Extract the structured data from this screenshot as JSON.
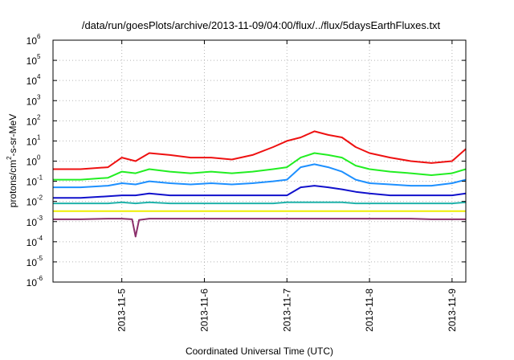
{
  "chart_data": {
    "type": "line",
    "title": "/data/run/goesPlots/archive/2013-11-09/04:00/flux/../flux/5daysEarthFluxes.txt",
    "xlabel": "Coordinated Universal Time (UTC)",
    "ylabel": "protons/cm²-s-sr-MeV",
    "ylabel_parts": {
      "pre": "protons/cm",
      "sup": "2",
      "post": "-s-sr-MeV"
    },
    "y_scale": "log",
    "ylim": [
      1e-06,
      1000000.0
    ],
    "y_tick_labels": [
      {
        "value": 1e-06,
        "base": "10",
        "exp": "-6"
      },
      {
        "value": 1e-05,
        "base": "10",
        "exp": "-5"
      },
      {
        "value": 0.0001,
        "base": "10",
        "exp": "-4"
      },
      {
        "value": 0.001,
        "base": "10",
        "exp": "-3"
      },
      {
        "value": 0.01,
        "base": "10",
        "exp": "-2"
      },
      {
        "value": 0.1,
        "base": "10",
        "exp": "-1"
      },
      {
        "value": 1,
        "base": "10",
        "exp": "0"
      },
      {
        "value": 10,
        "base": "10",
        "exp": "1"
      },
      {
        "value": 100,
        "base": "10",
        "exp": "2"
      },
      {
        "value": 1000,
        "base": "10",
        "exp": "3"
      },
      {
        "value": 10000,
        "base": "10",
        "exp": "4"
      },
      {
        "value": 100000,
        "base": "10",
        "exp": "5"
      },
      {
        "value": 1000000,
        "base": "10",
        "exp": "6"
      }
    ],
    "xlim": [
      "2013-11-04 04:00",
      "2013-11-09 04:00"
    ],
    "x_tick_labels": [
      "2013-11-5",
      "2013-11-6",
      "2013-11-7",
      "2013-11-8",
      "2013-11-9"
    ],
    "x_tick_dates": [
      "2013-11-05",
      "2013-11-06",
      "2013-11-07",
      "2013-11-08",
      "2013-11-09"
    ],
    "grid": true,
    "series": [
      {
        "color": "#ee1111",
        "x": [
          "2013-11-04 04:00",
          "2013-11-04 12:00",
          "2013-11-04 20:00",
          "2013-11-05 00:00",
          "2013-11-05 04:00",
          "2013-11-05 08:00",
          "2013-11-05 14:00",
          "2013-11-05 20:00",
          "2013-11-06 02:00",
          "2013-11-06 08:00",
          "2013-11-06 14:00",
          "2013-11-06 20:00",
          "2013-11-07 00:00",
          "2013-11-07 04:00",
          "2013-11-07 08:00",
          "2013-11-07 12:00",
          "2013-11-07 16:00",
          "2013-11-07 20:00",
          "2013-11-08 00:00",
          "2013-11-08 06:00",
          "2013-11-08 12:00",
          "2013-11-08 18:00",
          "2013-11-09 00:00",
          "2013-11-09 04:00"
        ],
        "y": [
          0.4,
          0.4,
          0.5,
          1.5,
          1.0,
          2.5,
          2.0,
          1.5,
          1.5,
          1.2,
          2.0,
          5,
          10,
          15,
          30,
          20,
          15,
          5,
          2.5,
          1.5,
          1.0,
          0.8,
          1.0,
          4
        ]
      },
      {
        "color": "#22ee22",
        "x": [
          "2013-11-04 04:00",
          "2013-11-04 12:00",
          "2013-11-04 20:00",
          "2013-11-05 00:00",
          "2013-11-05 04:00",
          "2013-11-05 08:00",
          "2013-11-05 14:00",
          "2013-11-05 20:00",
          "2013-11-06 02:00",
          "2013-11-06 08:00",
          "2013-11-06 14:00",
          "2013-11-06 20:00",
          "2013-11-07 00:00",
          "2013-11-07 04:00",
          "2013-11-07 08:00",
          "2013-11-07 12:00",
          "2013-11-07 16:00",
          "2013-11-07 20:00",
          "2013-11-08 00:00",
          "2013-11-08 06:00",
          "2013-11-08 12:00",
          "2013-11-08 18:00",
          "2013-11-09 00:00",
          "2013-11-09 04:00"
        ],
        "y": [
          0.12,
          0.12,
          0.15,
          0.3,
          0.25,
          0.4,
          0.3,
          0.25,
          0.3,
          0.25,
          0.3,
          0.4,
          0.5,
          1.5,
          2.5,
          2.0,
          1.5,
          0.6,
          0.4,
          0.3,
          0.25,
          0.2,
          0.25,
          0.4
        ]
      },
      {
        "color": "#1e90ff",
        "x": [
          "2013-11-04 04:00",
          "2013-11-04 12:00",
          "2013-11-04 20:00",
          "2013-11-05 00:00",
          "2013-11-05 04:00",
          "2013-11-05 08:00",
          "2013-11-05 14:00",
          "2013-11-05 20:00",
          "2013-11-06 02:00",
          "2013-11-06 08:00",
          "2013-11-06 14:00",
          "2013-11-06 20:00",
          "2013-11-07 00:00",
          "2013-11-07 04:00",
          "2013-11-07 08:00",
          "2013-11-07 12:00",
          "2013-11-07 16:00",
          "2013-11-07 20:00",
          "2013-11-08 00:00",
          "2013-11-08 06:00",
          "2013-11-08 12:00",
          "2013-11-08 18:00",
          "2013-11-09 00:00",
          "2013-11-09 04:00"
        ],
        "y": [
          0.05,
          0.05,
          0.06,
          0.08,
          0.07,
          0.1,
          0.08,
          0.07,
          0.08,
          0.07,
          0.08,
          0.1,
          0.12,
          0.5,
          0.7,
          0.5,
          0.3,
          0.12,
          0.08,
          0.07,
          0.06,
          0.06,
          0.08,
          0.12
        ]
      },
      {
        "color": "#1111cc",
        "x": [
          "2013-11-04 04:00",
          "2013-11-04 12:00",
          "2013-11-04 20:00",
          "2013-11-05 00:00",
          "2013-11-05 04:00",
          "2013-11-05 08:00",
          "2013-11-05 14:00",
          "2013-11-05 20:00",
          "2013-11-06 02:00",
          "2013-11-06 08:00",
          "2013-11-06 14:00",
          "2013-11-06 20:00",
          "2013-11-07 00:00",
          "2013-11-07 04:00",
          "2013-11-07 08:00",
          "2013-11-07 12:00",
          "2013-11-07 16:00",
          "2013-11-07 20:00",
          "2013-11-08 00:00",
          "2013-11-08 06:00",
          "2013-11-08 12:00",
          "2013-11-08 18:00",
          "2013-11-09 00:00",
          "2013-11-09 04:00"
        ],
        "y": [
          0.015,
          0.015,
          0.018,
          0.02,
          0.02,
          0.025,
          0.02,
          0.02,
          0.02,
          0.02,
          0.02,
          0.02,
          0.02,
          0.05,
          0.06,
          0.05,
          0.04,
          0.03,
          0.025,
          0.02,
          0.02,
          0.02,
          0.02,
          0.025
        ]
      },
      {
        "color": "#20b2aa",
        "x": [
          "2013-11-04 04:00",
          "2013-11-04 12:00",
          "2013-11-04 20:00",
          "2013-11-05 00:00",
          "2013-11-05 04:00",
          "2013-11-05 08:00",
          "2013-11-05 14:00",
          "2013-11-05 20:00",
          "2013-11-06 02:00",
          "2013-11-06 08:00",
          "2013-11-06 14:00",
          "2013-11-06 20:00",
          "2013-11-07 00:00",
          "2013-11-07 04:00",
          "2013-11-07 08:00",
          "2013-11-07 12:00",
          "2013-11-07 16:00",
          "2013-11-07 20:00",
          "2013-11-08 00:00",
          "2013-11-08 06:00",
          "2013-11-08 12:00",
          "2013-11-08 18:00",
          "2013-11-09 00:00",
          "2013-11-09 04:00"
        ],
        "y": [
          0.008,
          0.008,
          0.008,
          0.009,
          0.008,
          0.009,
          0.008,
          0.008,
          0.008,
          0.008,
          0.008,
          0.008,
          0.009,
          0.009,
          0.009,
          0.009,
          0.009,
          0.008,
          0.008,
          0.008,
          0.008,
          0.008,
          0.008,
          0.009
        ]
      },
      {
        "color": "#eeee00",
        "x": [
          "2013-11-04 04:00",
          "2013-11-04 12:00",
          "2013-11-04 20:00",
          "2013-11-05 00:00",
          "2013-11-05 04:00",
          "2013-11-05 08:00",
          "2013-11-05 14:00",
          "2013-11-05 20:00",
          "2013-11-06 02:00",
          "2013-11-06 08:00",
          "2013-11-06 14:00",
          "2013-11-06 20:00",
          "2013-11-07 00:00",
          "2013-11-07 04:00",
          "2013-11-07 08:00",
          "2013-11-07 12:00",
          "2013-11-07 16:00",
          "2013-11-07 20:00",
          "2013-11-08 00:00",
          "2013-11-08 06:00",
          "2013-11-08 12:00",
          "2013-11-08 18:00",
          "2013-11-09 00:00",
          "2013-11-09 04:00"
        ],
        "y": [
          0.0033,
          0.0033,
          0.0033,
          0.0033,
          0.0033,
          0.0033,
          0.0033,
          0.0033,
          0.0033,
          0.0033,
          0.0033,
          0.0033,
          0.0033,
          0.0033,
          0.0033,
          0.0033,
          0.0033,
          0.0033,
          0.0033,
          0.0033,
          0.0033,
          0.0033,
          0.0033,
          0.0033
        ]
      },
      {
        "color": "#8b2f6b",
        "x": [
          "2013-11-04 04:00",
          "2013-11-04 12:00",
          "2013-11-04 20:00",
          "2013-11-05 00:00",
          "2013-11-05 03:00",
          "2013-11-05 04:00",
          "2013-11-05 05:00",
          "2013-11-05 08:00",
          "2013-11-05 14:00",
          "2013-11-05 20:00",
          "2013-11-06 02:00",
          "2013-11-06 08:00",
          "2013-11-06 14:00",
          "2013-11-06 20:00",
          "2013-11-07 00:00",
          "2013-11-07 04:00",
          "2013-11-07 08:00",
          "2013-11-07 12:00",
          "2013-11-07 16:00",
          "2013-11-07 20:00",
          "2013-11-08 00:00",
          "2013-11-08 06:00",
          "2013-11-08 12:00",
          "2013-11-08 18:00",
          "2013-11-09 00:00",
          "2013-11-09 04:00"
        ],
        "y": [
          0.0013,
          0.0013,
          0.0014,
          0.0014,
          0.0013,
          0.00018,
          0.0012,
          0.0014,
          0.0014,
          0.0014,
          0.0014,
          0.0014,
          0.0014,
          0.0014,
          0.0014,
          0.0014,
          0.0014,
          0.0014,
          0.0014,
          0.0014,
          0.0014,
          0.0014,
          0.0014,
          0.0013,
          0.0013,
          0.0013
        ]
      }
    ]
  }
}
